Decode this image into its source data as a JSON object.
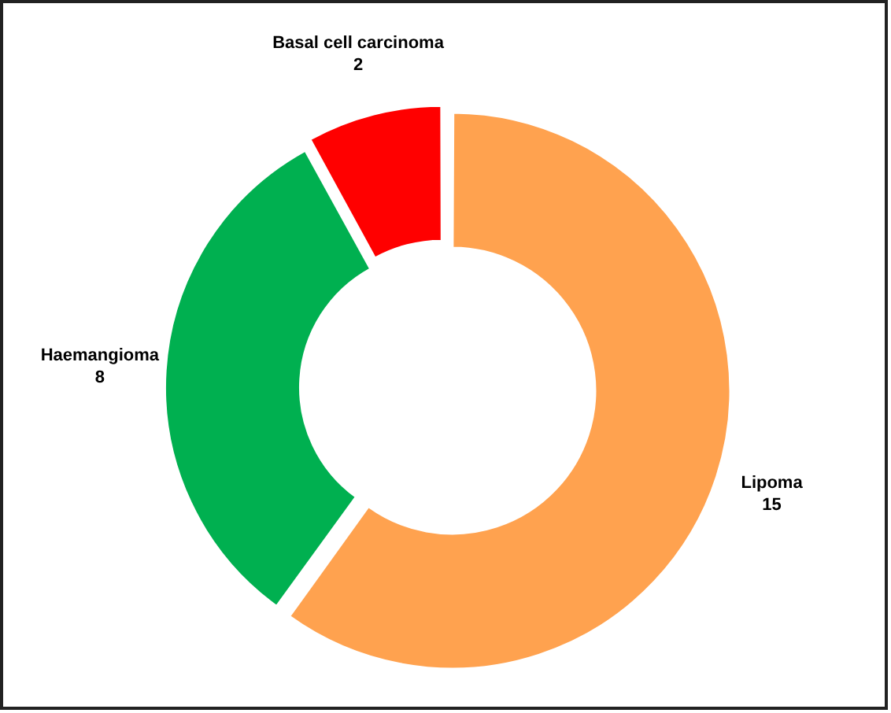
{
  "chart_data": {
    "type": "donut",
    "categories": [
      "Lipoma",
      "Haemangioma",
      "Basal cell carcinoma"
    ],
    "values": [
      15,
      8,
      2
    ],
    "colors": [
      "#ffa24f",
      "#00b050",
      "#ff0000"
    ],
    "data_labels": true,
    "legend": false
  }
}
